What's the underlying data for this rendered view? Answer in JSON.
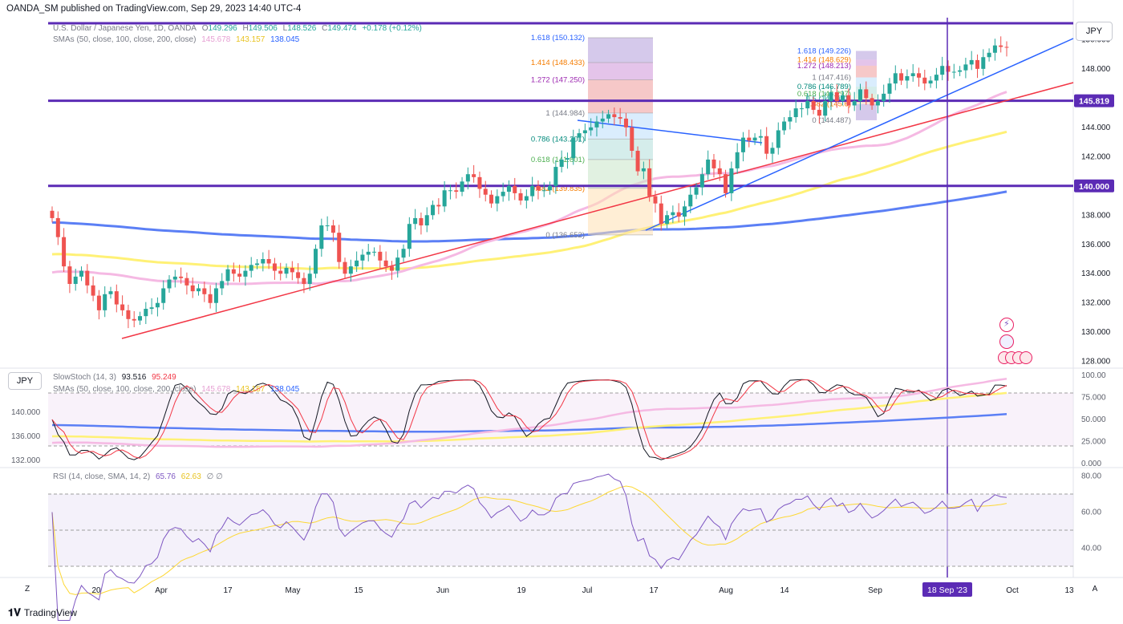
{
  "header": {
    "publisher": "OANDA_SM published on TradingView.com, Sep 29, 2023 14:40 UTC-4"
  },
  "main_legend": {
    "symbol": "U.S. Dollar / Japanese Yen, 1D, OANDA",
    "o_label": "O",
    "o_val": "149.296",
    "h_label": "H",
    "h_val": "149.506",
    "l_label": "L",
    "l_val": "148.526",
    "c_label": "C",
    "c_val": "149.474",
    "change": "+0.178 (+0.12%)",
    "sma_label": "SMAs (50, close, 100, close, 200, close)",
    "sma50": "145.678",
    "sma100": "143.157",
    "sma200": "138.045"
  },
  "stoch_legend": {
    "label": "SlowStoch (14, 3)",
    "k": "93.516",
    "d": "95.249",
    "sma_label": "SMAs (50, close, 100, close, 200, close)",
    "sma50": "145.678",
    "sma100": "143.157",
    "sma200": "138.045"
  },
  "rsi_legend": {
    "label": "RSI (14, close, SMA, 14, 2)",
    "rsi": "65.76",
    "sma": "62.63",
    "extra": "∅ ∅"
  },
  "buttons": {
    "currency_main": "JPY",
    "currency_stoch": "JPY",
    "zoom_left": "Z",
    "auto_right": "A"
  },
  "price_badges": {
    "level1": "145.819",
    "level2": "140.000"
  },
  "x_axis": {
    "ticks": [
      "20",
      "Apr",
      "17",
      "May",
      "15",
      "Jun",
      "19",
      "Jul",
      "17",
      "Aug",
      "14",
      "Sep",
      "Oct",
      "13"
    ],
    "cursor_label": "18 Sep '23"
  },
  "footer": {
    "brand": "TradingView"
  },
  "colors": {
    "up": "#26a69a",
    "down": "#ef5350",
    "sma50": "#f5b9e3",
    "sma100": "#fff176",
    "sma200": "#5b7ff5",
    "hline": "#5b2bb5",
    "trend_red": "#f23645",
    "trend_blue": "#2962ff",
    "cursor": "#5b2bb5"
  },
  "chart_data": [
    {
      "type": "candlestick",
      "title": "U.S. Dollar / Japanese Yen, 1D, OANDA",
      "x_labels": [
        "20",
        "Apr",
        "17",
        "May",
        "15",
        "Jun",
        "19",
        "Jul",
        "17",
        "Aug",
        "14",
        "Sep",
        "Oct",
        "13"
      ],
      "y_ticks": [
        128,
        130,
        132,
        134,
        136,
        138,
        140,
        142,
        144,
        146,
        148,
        150
      ],
      "ylim": [
        127.6,
        151.5
      ],
      "closes": [
        137.8,
        136.5,
        134.5,
        133.3,
        133.8,
        134.2,
        133.2,
        132.5,
        131.5,
        132.6,
        132.8,
        131.9,
        131.5,
        130.9,
        130.8,
        131.1,
        131.6,
        131.7,
        132.0,
        133.0,
        133.6,
        133.8,
        133.7,
        133.2,
        132.8,
        133.0,
        132.6,
        132.0,
        133.0,
        133.5,
        134.3,
        134.0,
        133.8,
        134.2,
        134.6,
        134.7,
        135.0,
        134.7,
        134.2,
        134.0,
        134.4,
        134.1,
        133.7,
        133.3,
        134.0,
        135.7,
        137.3,
        137.3,
        136.8,
        134.8,
        134.0,
        134.5,
        134.9,
        135.3,
        135.5,
        135.5,
        134.9,
        134.5,
        134.2,
        135.1,
        135.7,
        137.4,
        137.8,
        137.3,
        138.0,
        138.7,
        138.6,
        139.7,
        139.7,
        139.6,
        140.3,
        140.8,
        140.6,
        139.8,
        139.4,
        138.8,
        139.3,
        139.6,
        140.0,
        139.5,
        139.0,
        139.3,
        140.0,
        139.7,
        139.7,
        140.0,
        141.3,
        141.8,
        141.9,
        143.3,
        143.6,
        143.8,
        144.0,
        144.4,
        144.6,
        144.9,
        144.7,
        144.6,
        144.0,
        142.4,
        141.0,
        141.2,
        139.3,
        138.8,
        137.4,
        138.0,
        138.2,
        137.9,
        138.6,
        139.4,
        139.9,
        140.8,
        141.8,
        141.2,
        140.8,
        139.5,
        141.2,
        142.3,
        143.3,
        143.1,
        143.3,
        143.4,
        142.2,
        142.6,
        143.8,
        144.4,
        144.7,
        145.3,
        145.3,
        145.8,
        145.2,
        144.8,
        145.8,
        146.4,
        145.8,
        146.2,
        145.5,
        145.8,
        146.6,
        146.0,
        145.5,
        145.8,
        146.3,
        147.0,
        147.7,
        147.2,
        147.5,
        147.7,
        147.4,
        147.0,
        147.2,
        147.6,
        148.2,
        147.8,
        147.8,
        147.9,
        148.3,
        148.6,
        148.0,
        148.8,
        149.1,
        149.6,
        149.5,
        149.47
      ],
      "series": [
        {
          "name": "SMA 50",
          "value": 145.678
        },
        {
          "name": "SMA 100",
          "value": 143.157
        },
        {
          "name": "SMA 200",
          "value": 138.045
        }
      ],
      "hlines": [
        145.819,
        140.0
      ],
      "fib_left": [
        {
          "ratio": "1.618",
          "value": "150.132"
        },
        {
          "ratio": "1.414",
          "value": "148.433"
        },
        {
          "ratio": "1.272",
          "value": "147.250"
        },
        {
          "ratio": "1",
          "value": "144.984"
        },
        {
          "ratio": "0.786",
          "value": "143.201"
        },
        {
          "ratio": "0.618",
          "value": "141.801"
        },
        {
          "ratio": "0.382",
          "value": "139.835"
        },
        {
          "ratio": "0",
          "value": "136.652"
        }
      ],
      "fib_right": [
        {
          "ratio": "1.618",
          "value": "149.226"
        },
        {
          "ratio": "1.414",
          "value": "148.629"
        },
        {
          "ratio": "1.272",
          "value": "148.213"
        },
        {
          "ratio": "1",
          "value": "147.416"
        },
        {
          "ratio": "0.786",
          "value": "146.789"
        },
        {
          "ratio": "0.618",
          "value": "146.297"
        },
        {
          "ratio": "0.5",
          "value": "145.951"
        },
        {
          "ratio": "0.382",
          "value": "145.6"
        },
        {
          "ratio": "0",
          "value": "144.487"
        }
      ]
    },
    {
      "type": "line",
      "title": "SlowStoch (14, 3)",
      "y_ticks_right": [
        "100.00",
        "75.000",
        "50.000",
        "25.000",
        "0.000"
      ],
      "y_ticks_left": [
        "140.000",
        "136.000",
        "132.000"
      ],
      "band": [
        20,
        80
      ],
      "k": 93.516,
      "d": 95.249
    },
    {
      "type": "line",
      "title": "RSI (14, close, SMA, 14, 2)",
      "y_ticks": [
        "80.00",
        "60.00",
        "40.00"
      ],
      "band": [
        30,
        70
      ],
      "rsi": 65.76,
      "sma": 62.63
    }
  ]
}
